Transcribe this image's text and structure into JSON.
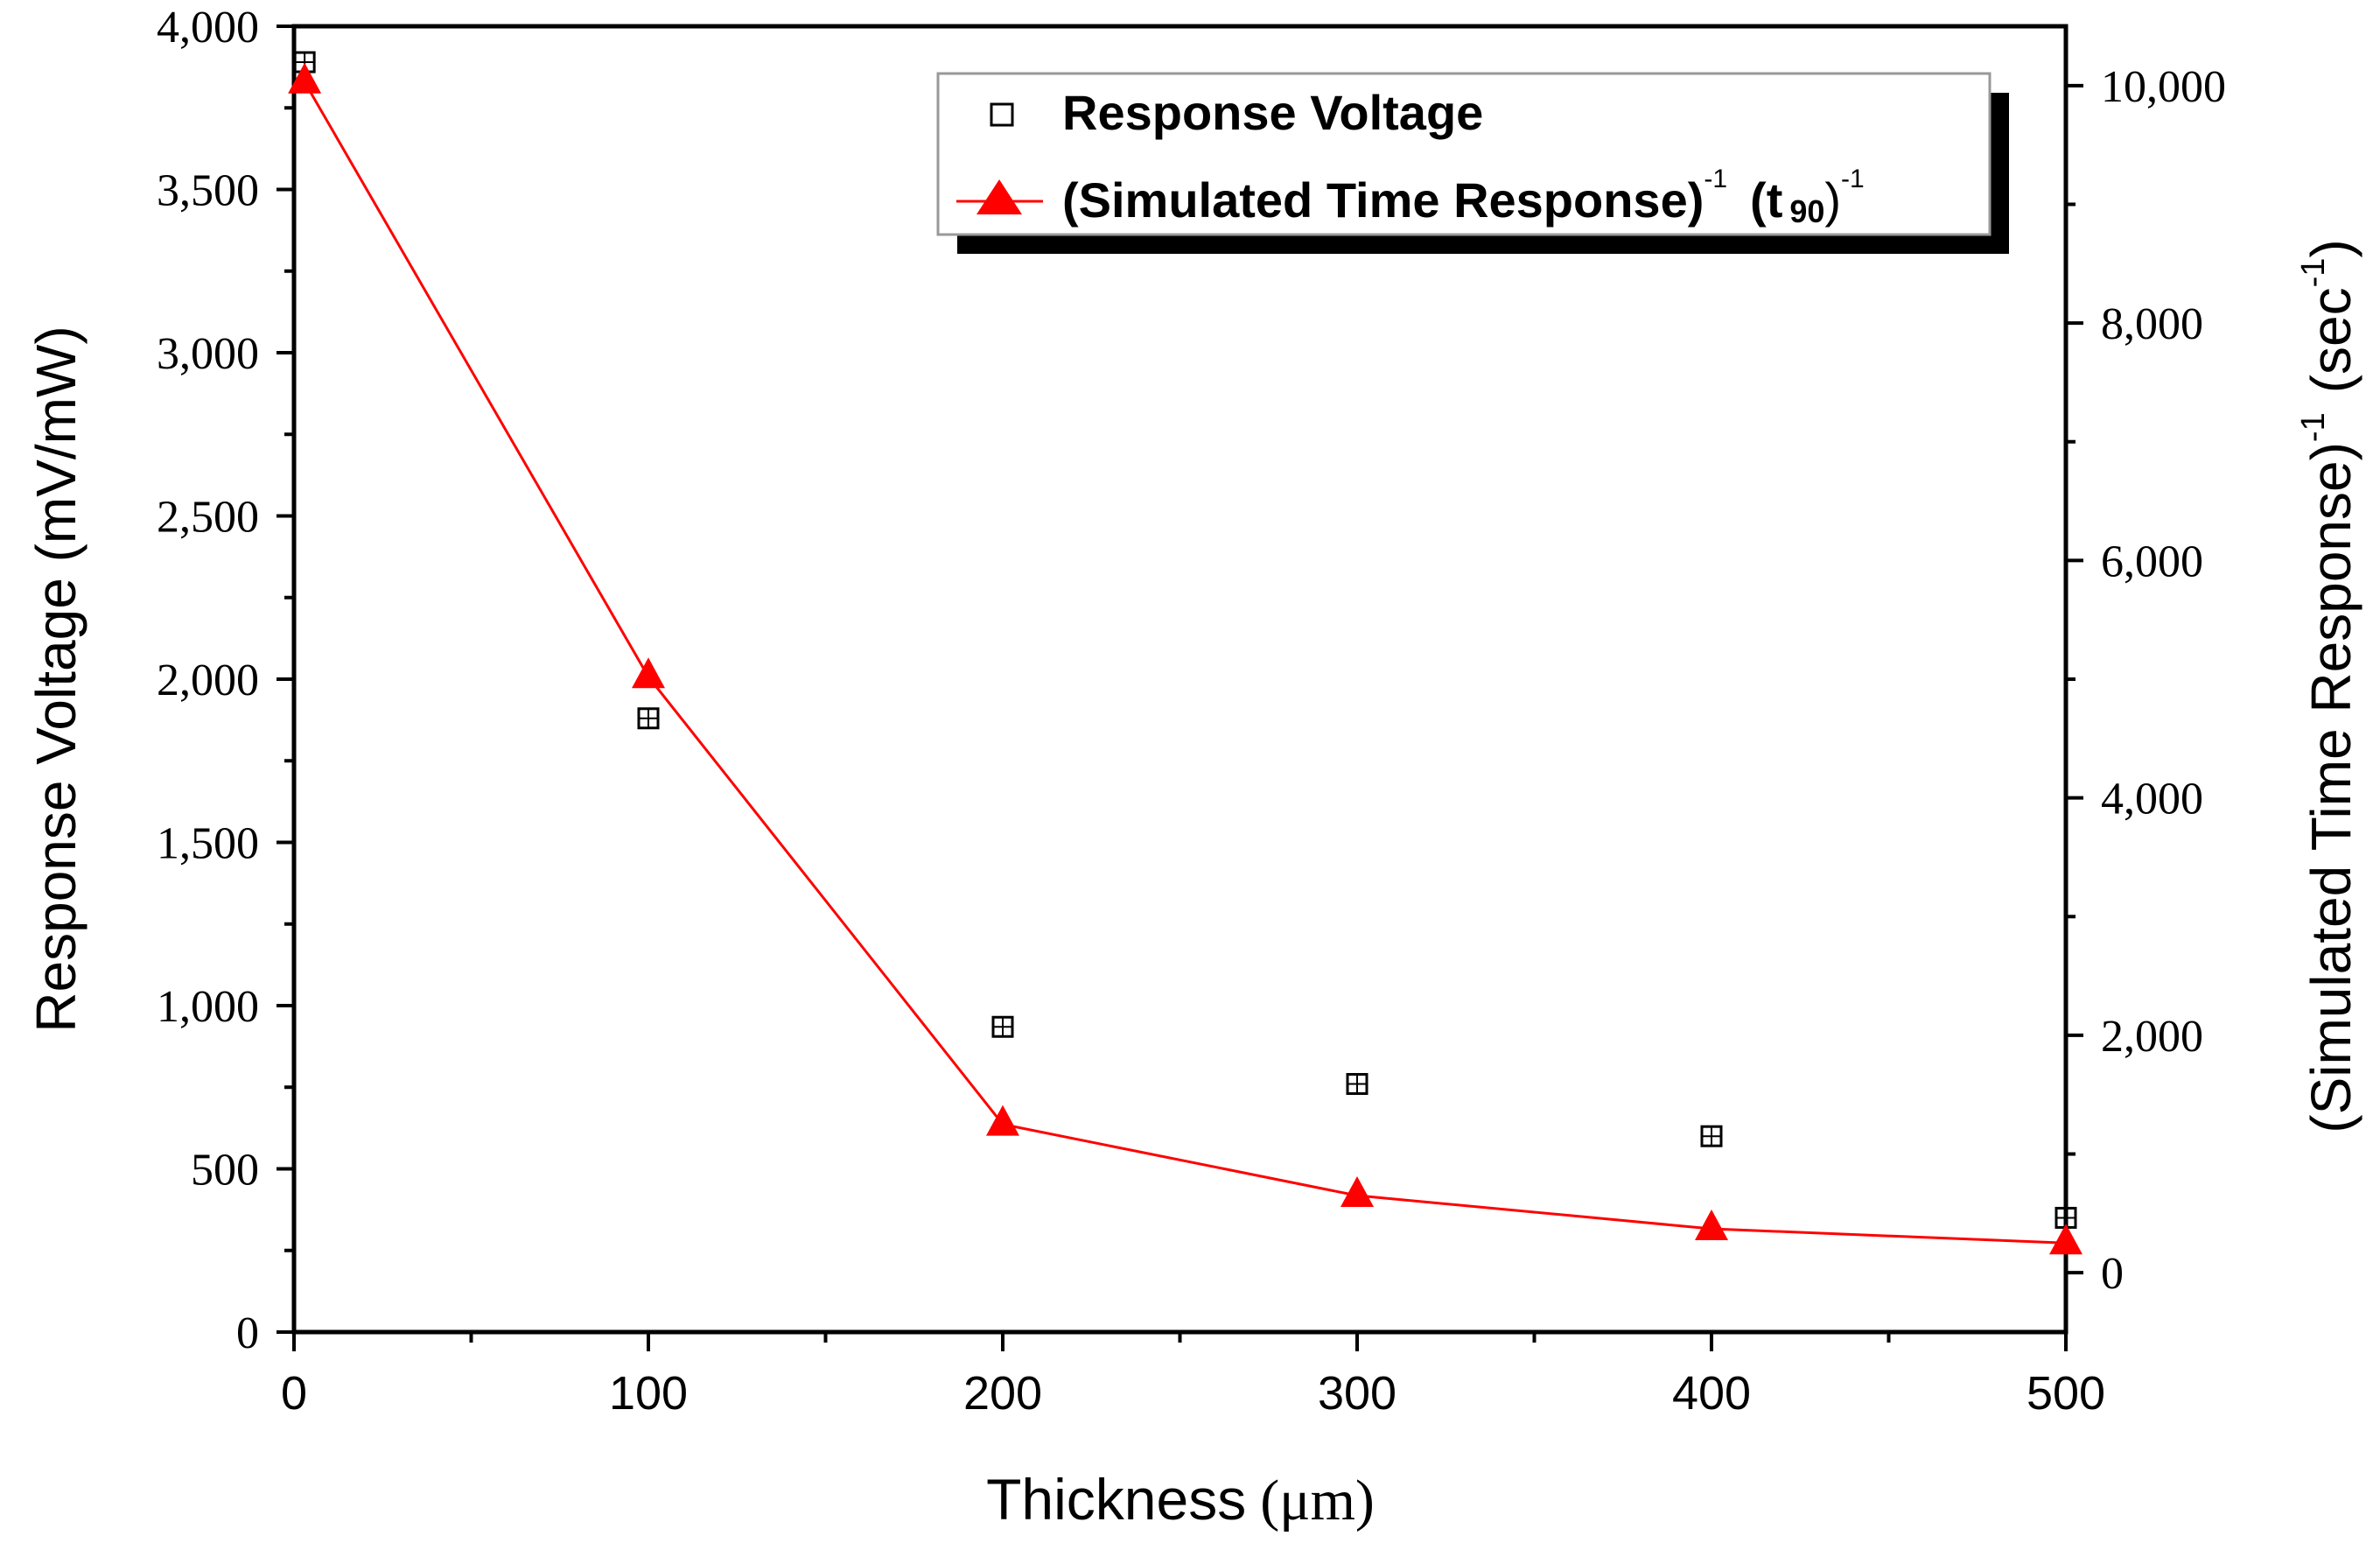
{
  "chart_data": {
    "type": "scatter",
    "xlabel_text": "Thickness",
    "xlabel_unit": "(μm)",
    "ylabel": "Response Voltage (mV/mW)",
    "y2label_base": "(Simulated Time Response)",
    "y2label_sup": "-1",
    "y2label_unit": "(sec",
    "y2label_unit_sup": "-1",
    "y2label_close": ")",
    "xlim": [
      0,
      500
    ],
    "ylim": [
      0,
      4000
    ],
    "y2lim": [
      -500,
      10500
    ],
    "x_ticks": [
      0,
      100,
      200,
      300,
      400,
      500
    ],
    "x_tick_labels": [
      "0",
      "100",
      "200",
      "300",
      "400",
      "500"
    ],
    "y_ticks": [
      0,
      500,
      1000,
      1500,
      2000,
      2500,
      3000,
      3500,
      4000
    ],
    "y_tick_labels": [
      "0",
      "500",
      "1,000",
      "1,500",
      "2,000",
      "2,500",
      "3,000",
      "3,500",
      "4,000"
    ],
    "y2_ticks": [
      0,
      2000,
      4000,
      6000,
      8000,
      10000
    ],
    "y2_tick_labels": [
      "0",
      "2,000",
      "4,000",
      "6,000",
      "8,000",
      "10,000"
    ],
    "series": [
      {
        "name": "Response Voltage",
        "axis": "left",
        "marker": "open-square",
        "color": "#000000",
        "x": [
          3,
          100,
          200,
          300,
          400,
          500
        ],
        "values": [
          3890,
          1880,
          935,
          760,
          600,
          350
        ]
      },
      {
        "name": "(Simulated Time Response)",
        "axis": "right",
        "marker": "filled-triangle",
        "line": true,
        "color": "#ff0000",
        "x": [
          3,
          100,
          200,
          300,
          400,
          500
        ],
        "values": [
          10030,
          5020,
          1250,
          650,
          370,
          250
        ]
      }
    ],
    "legend": {
      "position": "top-right",
      "entry1": "Response Voltage",
      "entry2_main": "(Simulated Time Response)",
      "entry2_sup1": "-1",
      "entry2_t": "(t",
      "entry2_sub": "90",
      "entry2_close": ")",
      "entry2_sup2": "-1"
    }
  }
}
